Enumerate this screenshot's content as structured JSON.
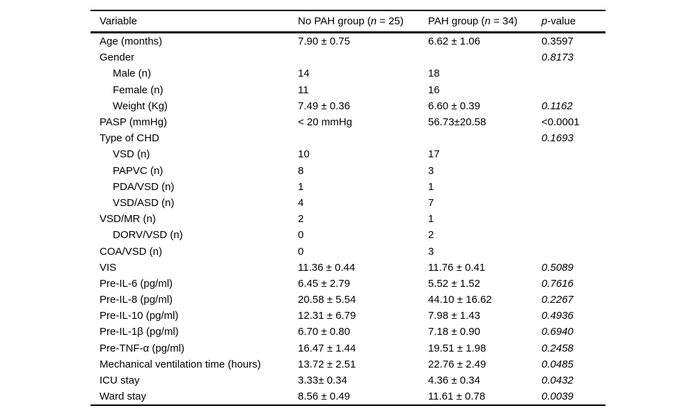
{
  "page": {
    "background": "#ffffff",
    "text_color": "#000000",
    "rule_color": "#000000"
  },
  "table": {
    "header": {
      "variable": "Variable",
      "group1_pre": "No PAH group (",
      "group1_n": "n",
      "group1_post": " = 25)",
      "group2_pre": "PAH group (",
      "group2_n": "n",
      "group2_post": " = 34)",
      "pvalue_p": "p",
      "pvalue_post": "-value"
    },
    "rows": [
      {
        "label": "Age (months)",
        "indent": false,
        "no_pah": "7.90 ± 0.75",
        "pah": "6.62 ± 1.06",
        "p": "0.3597",
        "p_italic": false
      },
      {
        "label": "Gender",
        "indent": false,
        "no_pah": "",
        "pah": "",
        "p": "0.8173",
        "p_italic": true
      },
      {
        "label": "Male (n)",
        "indent": true,
        "no_pah": "14",
        "pah": "18",
        "p": "",
        "p_italic": false
      },
      {
        "label": "Female (n)",
        "indent": true,
        "no_pah": "11",
        "pah": "16",
        "p": "",
        "p_italic": false
      },
      {
        "label": "Weight (Kg)",
        "indent": true,
        "no_pah": "7.49 ± 0.36",
        "pah": "6.60 ± 0.39",
        "p": "0.1162",
        "p_italic": true
      },
      {
        "label": "PASP (mmHg)",
        "indent": false,
        "no_pah": "< 20 mmHg",
        "pah": "56.73±20.58",
        "p": "<0.0001",
        "p_italic": false
      },
      {
        "label": "Type of CHD",
        "indent": false,
        "no_pah": "",
        "pah": "",
        "p": "0.1693",
        "p_italic": true
      },
      {
        "label": "VSD (n)",
        "indent": true,
        "no_pah": "10",
        "pah": "17",
        "p": "",
        "p_italic": false
      },
      {
        "label": "PAPVC (n)",
        "indent": true,
        "no_pah": "8",
        "pah": "3",
        "p": "",
        "p_italic": false
      },
      {
        "label": "PDA/VSD (n)",
        "indent": true,
        "no_pah": "1",
        "pah": "1",
        "p": "",
        "p_italic": false
      },
      {
        "label": "VSD/ASD (n)",
        "indent": true,
        "no_pah": "4",
        "pah": "7",
        "p": "",
        "p_italic": false
      },
      {
        "label": "VSD/MR (n)",
        "indent": false,
        "no_pah": "2",
        "pah": "1",
        "p": "",
        "p_italic": false
      },
      {
        "label": "DORV/VSD (n)",
        "indent": true,
        "no_pah": "0",
        "pah": "2",
        "p": "",
        "p_italic": false
      },
      {
        "label": "COA/VSD (n)",
        "indent": false,
        "no_pah": "0",
        "pah": "3",
        "p": "",
        "p_italic": false
      },
      {
        "label": "VIS",
        "indent": false,
        "no_pah": "11.36 ± 0.44",
        "pah": "11.76 ± 0.41",
        "p": "0.5089",
        "p_italic": true
      },
      {
        "label": "Pre-IL-6 (pg/ml)",
        "indent": false,
        "no_pah": "6.45 ± 2.79",
        "pah": "5.52 ± 1.52",
        "p": "0.7616",
        "p_italic": true
      },
      {
        "label": "Pre-IL-8 (pg/ml)",
        "indent": false,
        "no_pah": "20.58 ± 5.54",
        "pah": "44.10 ± 16.62",
        "p": "0.2267",
        "p_italic": true
      },
      {
        "label": "Pre-IL-10 (pg/ml)",
        "indent": false,
        "no_pah": "12.31 ± 6.79",
        "pah": "7.98 ± 1.43",
        "p": "0.4936",
        "p_italic": true
      },
      {
        "label": "Pre-IL-1β (pg/ml)",
        "indent": false,
        "no_pah": "6.70 ± 0.80",
        "pah": "7.18 ± 0.90",
        "p": "0.6940",
        "p_italic": true
      },
      {
        "label": "Pre-TNF-α (pg/ml)",
        "indent": false,
        "no_pah": "16.47 ± 1.44",
        "pah": "19.51 ± 1.98",
        "p": "0.2458",
        "p_italic": true
      },
      {
        "label": "Mechanical ventilation time (hours)",
        "indent": false,
        "no_pah": "13.72 ± 2.51",
        "pah": "22.76 ± 2.49",
        "p": "0.0485",
        "p_italic": true
      },
      {
        "label": "ICU stay",
        "indent": false,
        "no_pah": "3.33± 0.34",
        "pah": "4.36 ± 0.34",
        "p": "0.0432",
        "p_italic": true
      },
      {
        "label": "Ward stay",
        "indent": false,
        "no_pah": "8.56 ± 0.49",
        "pah": "11.61 ± 0.78",
        "p": "0.0039",
        "p_italic": true
      }
    ]
  }
}
